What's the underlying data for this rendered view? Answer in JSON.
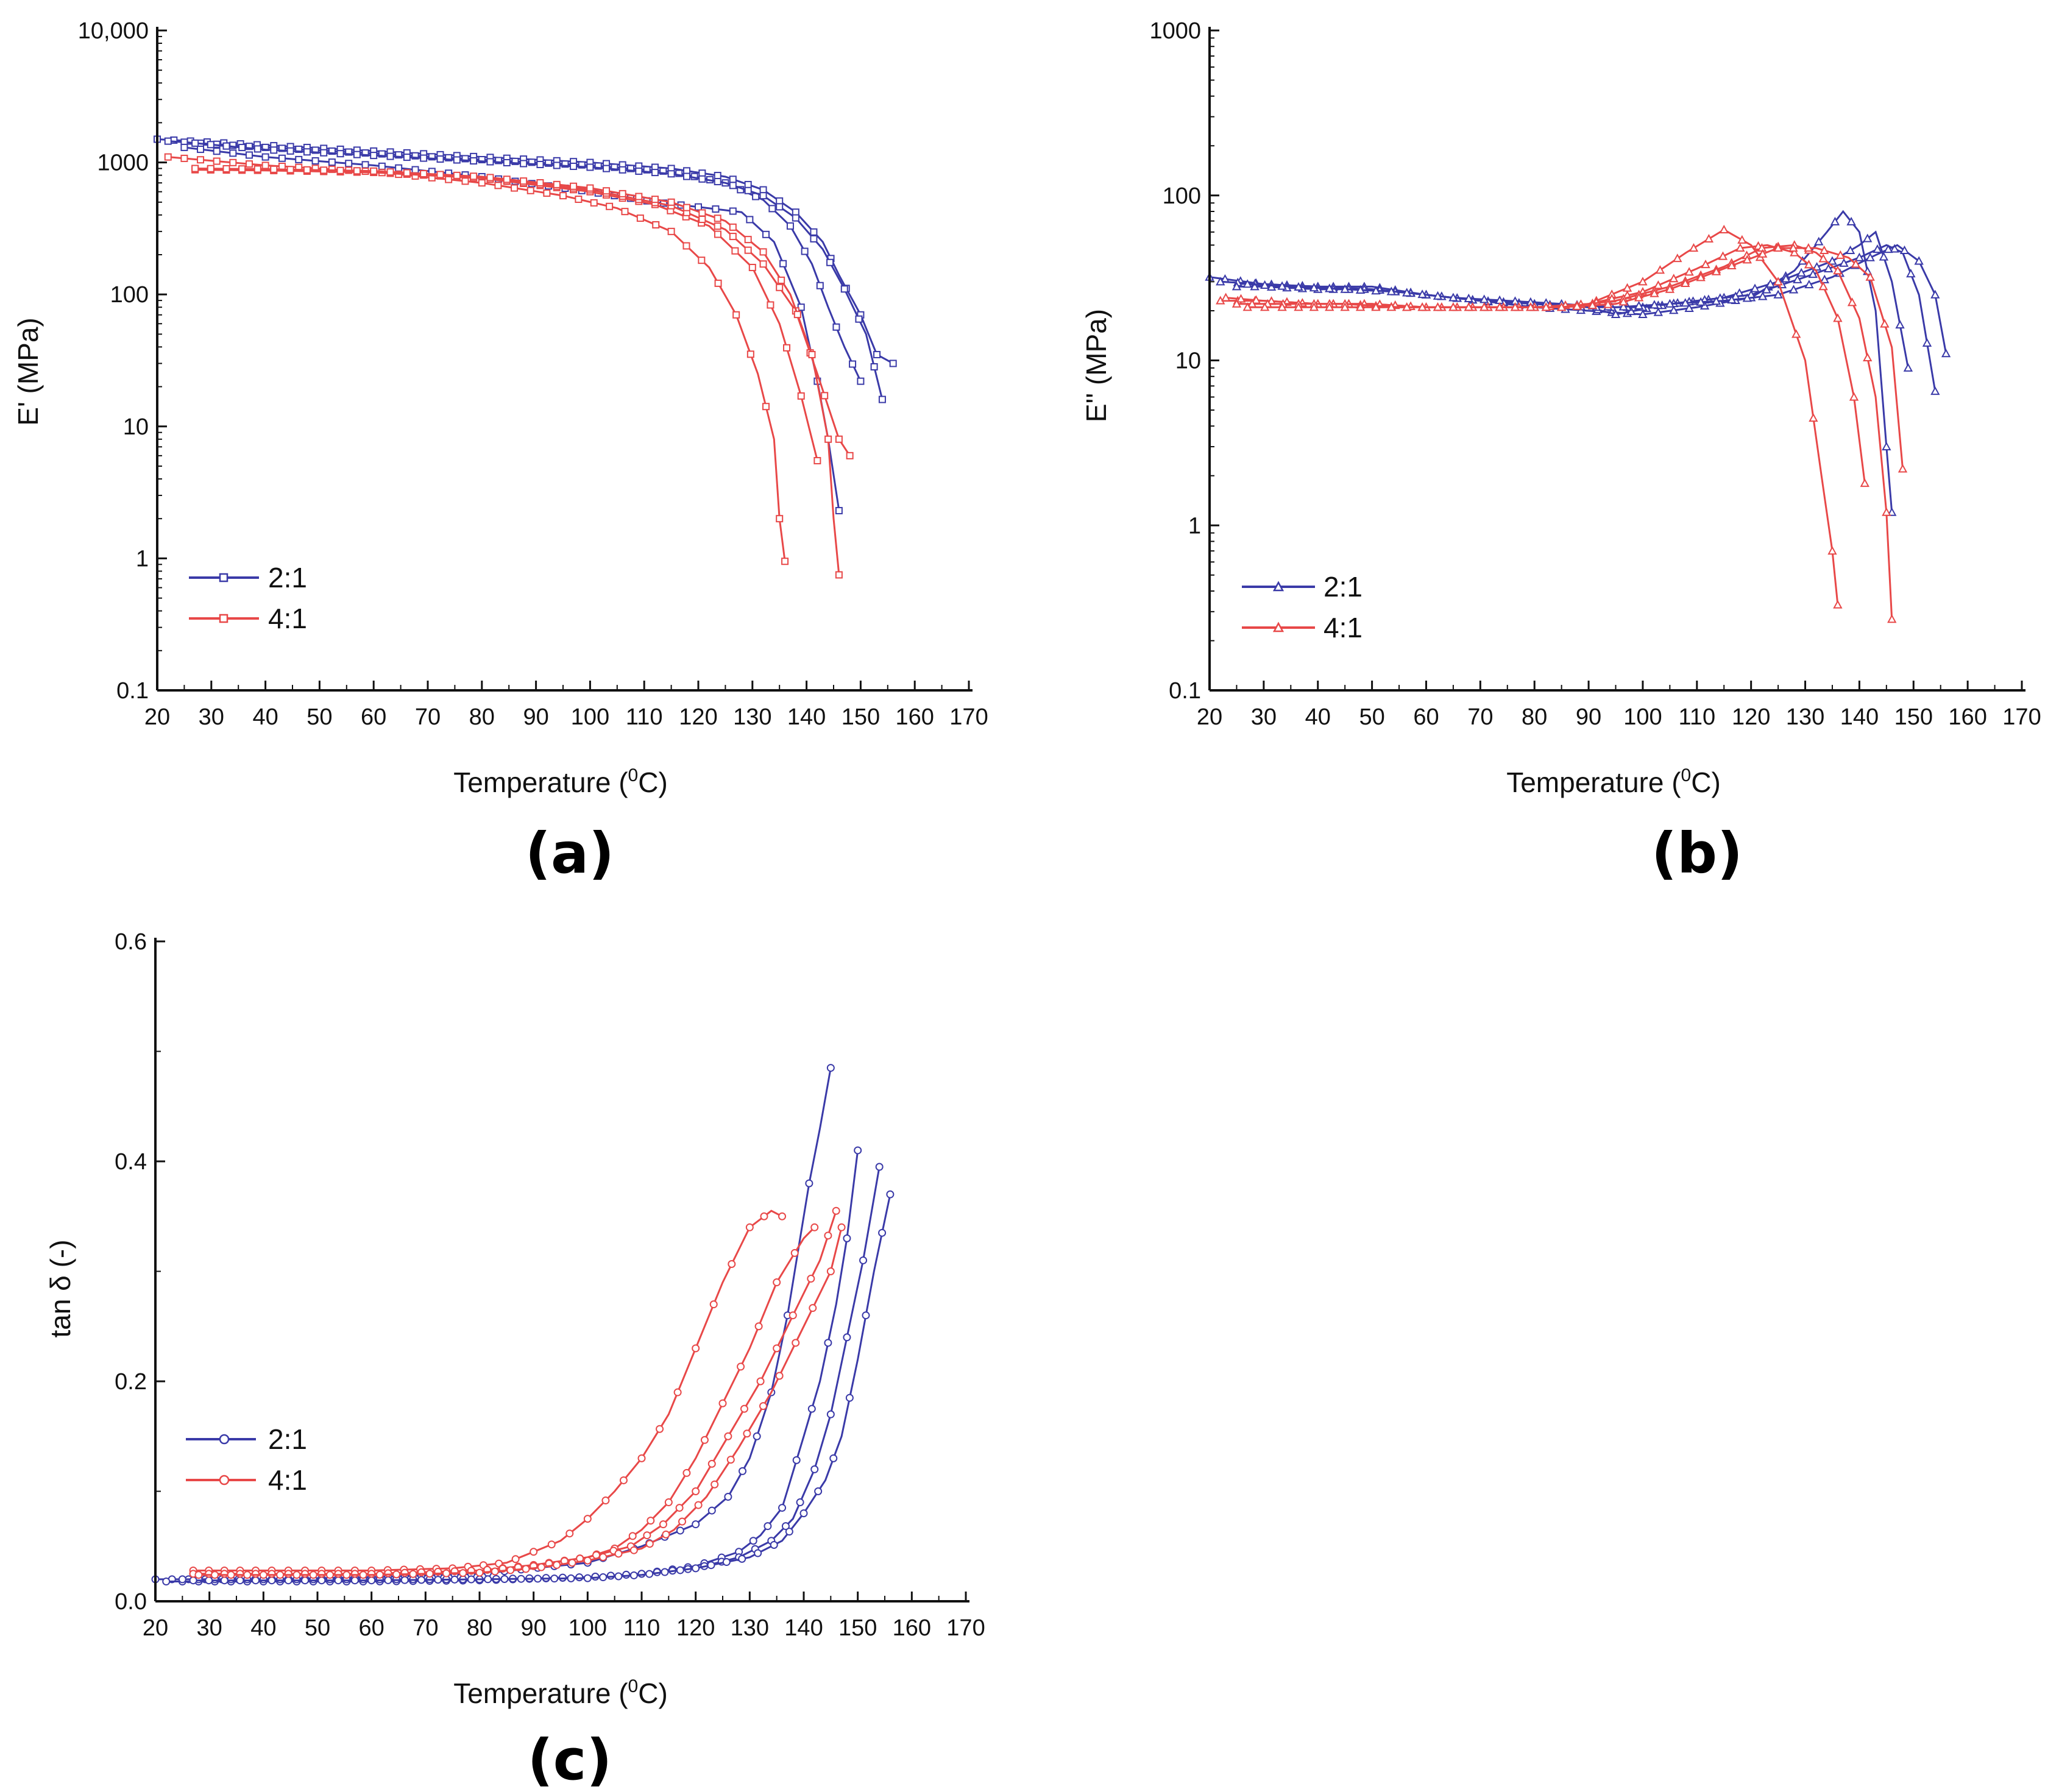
{
  "colors": {
    "series_2_1": "#3a3aa8",
    "series_4_1": "#e84848"
  },
  "chart_data": [
    {
      "panel": "(a)",
      "type": "line",
      "xlabel": "Temperature (",
      "xlabel_sup": "0",
      "xlabel_end": "C)",
      "ylabel": "E' (MPa)",
      "yscale": "log",
      "xlim": [
        20,
        170
      ],
      "ylim": [
        0.1,
        10000
      ],
      "xticks": [
        "20",
        "30",
        "40",
        "50",
        "60",
        "70",
        "80",
        "90",
        "100",
        "110",
        "120",
        "130",
        "140",
        "150",
        "160",
        "170"
      ],
      "yticks": [
        {
          "v": 0.1,
          "label": "0.1"
        },
        {
          "v": 1,
          "label": "1"
        },
        {
          "v": 10,
          "label": "10"
        },
        {
          "v": 100,
          "label": "100"
        },
        {
          "v": 1000,
          "label": "1000"
        },
        {
          "v": 10000,
          "label": "10,000"
        }
      ],
      "marker": "square",
      "legend": [
        {
          "name": "2:1"
        },
        {
          "name": "4:1"
        }
      ],
      "series": [
        {
          "name": "2:1",
          "x": [
            20,
            40,
            60,
            80,
            100,
            115,
            125,
            132,
            138,
            143,
            146,
            150,
            153,
            156
          ],
          "y": [
            1500,
            1350,
            1220,
            1100,
            1000,
            900,
            780,
            620,
            420,
            250,
            140,
            70,
            35,
            30
          ]
        },
        {
          "name": "2:1",
          "x": [
            22,
            40,
            60,
            80,
            100,
            115,
            125,
            132,
            137,
            141,
            144,
            147,
            150
          ],
          "y": [
            1450,
            1300,
            1170,
            1050,
            950,
            850,
            700,
            520,
            330,
            170,
            80,
            40,
            22
          ]
        },
        {
          "name": "2:1",
          "x": [
            25,
            40,
            60,
            80,
            100,
            112,
            120,
            128,
            134,
            139,
            142,
            144,
            146
          ],
          "y": [
            1300,
            1100,
            950,
            780,
            600,
            500,
            460,
            420,
            250,
            80,
            22,
            8,
            2.3
          ]
        },
        {
          "name": "2:1",
          "x": [
            27,
            40,
            60,
            80,
            100,
            115,
            125,
            132,
            138,
            143,
            147,
            151,
            154
          ],
          "y": [
            1400,
            1250,
            1130,
            1020,
            920,
            820,
            700,
            560,
            380,
            220,
            110,
            50,
            16
          ]
        },
        {
          "name": "4:1",
          "x": [
            22,
            40,
            60,
            80,
            95,
            105,
            115,
            122,
            127,
            131,
            134,
            135,
            136
          ],
          "y": [
            1100,
            950,
            850,
            700,
            560,
            450,
            300,
            160,
            70,
            25,
            8,
            2,
            0.95
          ]
        },
        {
          "name": "4:1",
          "x": [
            27,
            40,
            60,
            80,
            100,
            112,
            122,
            130,
            135,
            139,
            142
          ],
          "y": [
            880,
            870,
            840,
            760,
            600,
            480,
            330,
            160,
            60,
            17,
            5.5
          ]
        },
        {
          "name": "4:1",
          "x": [
            27,
            40,
            60,
            80,
            100,
            115,
            125,
            132,
            138,
            142,
            146,
            148
          ],
          "y": [
            890,
            880,
            850,
            760,
            620,
            470,
            310,
            170,
            75,
            25,
            8,
            6
          ]
        },
        {
          "name": "4:1",
          "x": [
            27,
            40,
            60,
            80,
            100,
            115,
            125,
            132,
            137,
            141,
            144,
            145,
            146
          ],
          "y": [
            900,
            890,
            860,
            780,
            640,
            500,
            360,
            210,
            100,
            35,
            8,
            2,
            0.75
          ]
        }
      ]
    },
    {
      "panel": "(b)",
      "type": "line",
      "xlabel": "Temperature (",
      "xlabel_sup": "0",
      "xlabel_end": "C)",
      "ylabel": "E'' (MPa)",
      "yscale": "log",
      "xlim": [
        20,
        170
      ],
      "ylim": [
        0.1,
        1000
      ],
      "xticks": [
        "20",
        "30",
        "40",
        "50",
        "60",
        "70",
        "80",
        "90",
        "100",
        "110",
        "120",
        "130",
        "140",
        "150",
        "160",
        "170"
      ],
      "yticks": [
        {
          "v": 0.1,
          "label": "0.1"
        },
        {
          "v": 1,
          "label": "1"
        },
        {
          "v": 10,
          "label": "10"
        },
        {
          "v": 100,
          "label": "100"
        },
        {
          "v": 1000,
          "label": "1000"
        }
      ],
      "marker": "triangle",
      "legend": [
        {
          "name": "2:1"
        },
        {
          "name": "4:1"
        }
      ],
      "series": [
        {
          "name": "2:1",
          "x": [
            20,
            30,
            40,
            50,
            60,
            70,
            80,
            90,
            100,
            110,
            120,
            128,
            134,
            137,
            140,
            143,
            145,
            146
          ],
          "y": [
            32,
            29,
            28,
            27,
            25,
            23,
            21,
            20,
            19,
            21,
            24,
            35,
            60,
            80,
            60,
            20,
            3,
            1.2
          ]
        },
        {
          "name": "2:1",
          "x": [
            22,
            30,
            40,
            50,
            60,
            70,
            80,
            90,
            95,
            105,
            115,
            125,
            135,
            140,
            143,
            146,
            149
          ],
          "y": [
            30,
            29,
            28,
            28,
            25,
            23,
            22,
            21,
            19,
            22,
            24,
            30,
            40,
            50,
            60,
            30,
            9
          ]
        },
        {
          "name": "2:1",
          "x": [
            25,
            30,
            40,
            50,
            60,
            70,
            80,
            90,
            100,
            110,
            120,
            130,
            140,
            145,
            148,
            151,
            154
          ],
          "y": [
            28,
            28,
            27,
            27,
            25,
            23,
            22,
            21,
            21,
            23,
            25,
            32,
            42,
            50,
            45,
            25,
            6.5
          ]
        },
        {
          "name": "2:1",
          "x": [
            27,
            35,
            45,
            55,
            65,
            75,
            85,
            95,
            105,
            115,
            125,
            135,
            142,
            147,
            151,
            154,
            156
          ],
          "y": [
            29,
            28,
            27,
            26,
            24,
            23,
            22,
            21,
            22,
            23,
            25,
            32,
            42,
            50,
            40,
            25,
            11
          ]
        },
        {
          "name": "4:1",
          "x": [
            22,
            30,
            40,
            50,
            60,
            70,
            80,
            90,
            100,
            108,
            115,
            120,
            125,
            130,
            133,
            135,
            136
          ],
          "y": [
            23,
            23,
            22,
            22,
            21,
            21,
            21,
            22,
            30,
            45,
            62,
            50,
            30,
            10,
            2,
            0.7,
            0.33
          ]
        },
        {
          "name": "4:1",
          "x": [
            23,
            30,
            40,
            50,
            60,
            70,
            80,
            90,
            100,
            110,
            118,
            123,
            128,
            132,
            136,
            139,
            141
          ],
          "y": [
            24,
            23,
            22,
            22,
            21,
            21,
            21,
            22,
            26,
            36,
            48,
            50,
            45,
            35,
            18,
            6,
            1.8
          ]
        },
        {
          "name": "4:1",
          "x": [
            25,
            35,
            45,
            55,
            65,
            75,
            85,
            95,
            105,
            115,
            122,
            128,
            132,
            136,
            140,
            143,
            145,
            146
          ],
          "y": [
            22,
            22,
            22,
            21,
            21,
            21,
            21,
            23,
            28,
            37,
            48,
            50,
            45,
            35,
            18,
            6,
            1.2,
            0.27
          ]
        },
        {
          "name": "4:1",
          "x": [
            27,
            35,
            45,
            55,
            65,
            75,
            85,
            95,
            105,
            115,
            125,
            132,
            138,
            142,
            146,
            148
          ],
          "y": [
            21,
            21,
            21,
            21,
            21,
            21,
            21,
            22,
            27,
            36,
            48,
            48,
            42,
            32,
            12,
            2.2
          ]
        }
      ]
    },
    {
      "panel": "(c)",
      "type": "line",
      "xlabel": "Temperature (",
      "xlabel_sup": "0",
      "xlabel_end": "C)",
      "ylabel": "tan δ (-)",
      "yscale": "linear",
      "xlim": [
        20,
        170
      ],
      "ylim": [
        0.0,
        0.6
      ],
      "xticks": [
        "20",
        "30",
        "40",
        "50",
        "60",
        "70",
        "80",
        "90",
        "100",
        "110",
        "120",
        "130",
        "140",
        "150",
        "160",
        "170"
      ],
      "yticks": [
        {
          "v": 0.0,
          "label": "0.0"
        },
        {
          "v": 0.2,
          "label": "0.2"
        },
        {
          "v": 0.4,
          "label": "0.4"
        },
        {
          "v": 0.6,
          "label": "0.6"
        }
      ],
      "marker": "circle",
      "legend": [
        {
          "name": "2:1"
        },
        {
          "name": "4:1"
        }
      ],
      "series": [
        {
          "name": "2:1",
          "x": [
            20,
            40,
            60,
            80,
            100,
            110,
            120,
            126,
            130,
            134,
            137,
            139,
            141,
            143,
            145
          ],
          "y": [
            0.02,
            0.02,
            0.022,
            0.025,
            0.035,
            0.05,
            0.07,
            0.095,
            0.13,
            0.19,
            0.26,
            0.32,
            0.38,
            0.43,
            0.485
          ]
        },
        {
          "name": "2:1",
          "x": [
            22,
            40,
            60,
            80,
            100,
            110,
            120,
            128,
            132,
            136,
            140,
            143,
            146,
            148,
            150
          ],
          "y": [
            0.018,
            0.018,
            0.018,
            0.019,
            0.022,
            0.025,
            0.032,
            0.045,
            0.06,
            0.085,
            0.15,
            0.2,
            0.27,
            0.33,
            0.41
          ]
        },
        {
          "name": "2:1",
          "x": [
            25,
            40,
            60,
            80,
            100,
            110,
            120,
            128,
            134,
            138,
            142,
            145,
            148,
            151,
            154
          ],
          "y": [
            0.02,
            0.02,
            0.02,
            0.02,
            0.022,
            0.025,
            0.03,
            0.04,
            0.055,
            0.075,
            0.12,
            0.17,
            0.24,
            0.31,
            0.395
          ]
        },
        {
          "name": "2:1",
          "x": [
            27,
            40,
            60,
            80,
            100,
            110,
            120,
            130,
            136,
            140,
            144,
            147,
            150,
            153,
            156
          ],
          "y": [
            0.019,
            0.019,
            0.019,
            0.02,
            0.021,
            0.024,
            0.03,
            0.04,
            0.055,
            0.08,
            0.11,
            0.15,
            0.22,
            0.3,
            0.37
          ]
        },
        {
          "name": "4:1",
          "x": [
            27,
            40,
            60,
            75,
            85,
            90,
            95,
            100,
            105,
            110,
            115,
            120,
            125,
            130,
            134,
            136
          ],
          "y": [
            0.028,
            0.028,
            0.028,
            0.03,
            0.035,
            0.045,
            0.055,
            0.075,
            0.1,
            0.13,
            0.17,
            0.23,
            0.29,
            0.34,
            0.355,
            0.35
          ]
        },
        {
          "name": "4:1",
          "x": [
            27,
            40,
            60,
            80,
            90,
            100,
            105,
            110,
            115,
            120,
            125,
            130,
            135,
            140,
            142
          ],
          "y": [
            0.025,
            0.025,
            0.025,
            0.028,
            0.033,
            0.04,
            0.048,
            0.065,
            0.09,
            0.13,
            0.18,
            0.23,
            0.29,
            0.33,
            0.34
          ]
        },
        {
          "name": "4:1",
          "x": [
            27,
            40,
            60,
            80,
            90,
            100,
            108,
            114,
            120,
            126,
            132,
            138,
            143,
            146
          ],
          "y": [
            0.025,
            0.025,
            0.025,
            0.028,
            0.032,
            0.04,
            0.05,
            0.07,
            0.1,
            0.15,
            0.2,
            0.26,
            0.31,
            0.355
          ]
        },
        {
          "name": "4:1",
          "x": [
            28,
            40,
            60,
            80,
            90,
            100,
            110,
            116,
            122,
            128,
            134,
            140,
            145,
            147
          ],
          "y": [
            0.024,
            0.024,
            0.024,
            0.026,
            0.03,
            0.037,
            0.048,
            0.065,
            0.095,
            0.14,
            0.19,
            0.25,
            0.3,
            0.34
          ]
        }
      ]
    }
  ]
}
